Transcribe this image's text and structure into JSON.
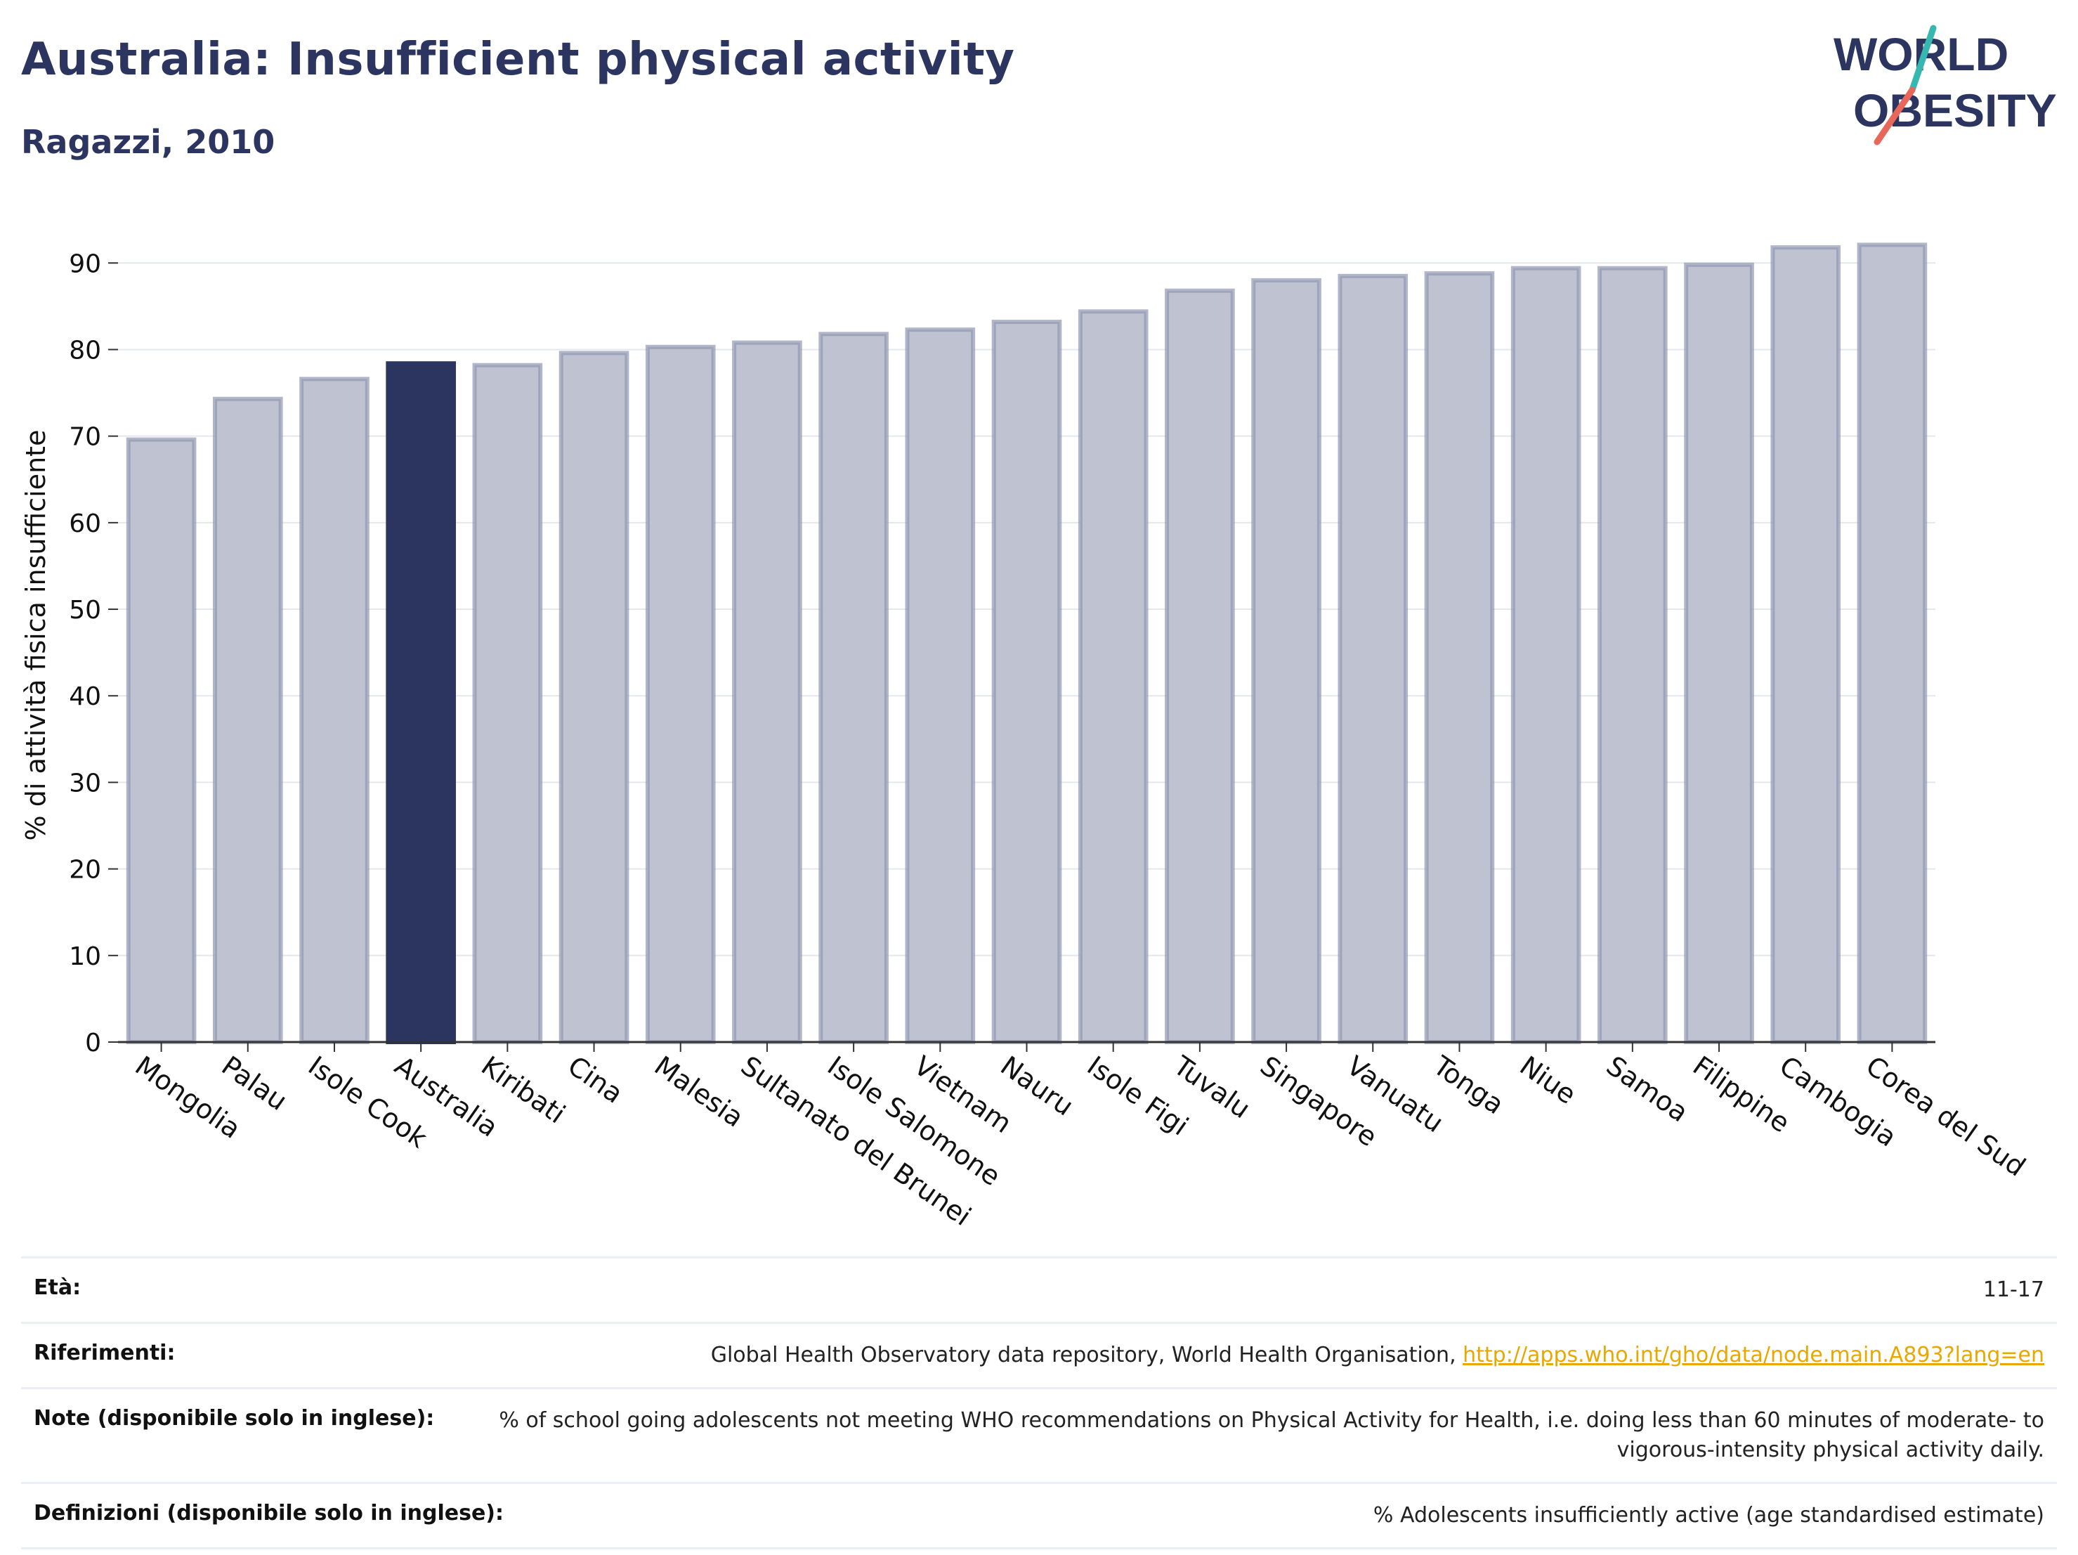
{
  "header": {
    "title": "Australia: Insufficient physical activity",
    "subtitle": "Ragazzi, 2010"
  },
  "logo": {
    "line1": "WORLD",
    "line2": "OBESITY",
    "accent_colors": [
      "#36b8b0",
      "#e8675a"
    ]
  },
  "colors": {
    "highlight": "#2b3560",
    "bar_fill": "#bfc2d0",
    "bar_stroke": "#9097b1",
    "grid": "#e6e7ec"
  },
  "chart_data": {
    "type": "bar",
    "ylabel": "% di attività fisica insufficiente",
    "xlabel": "",
    "ylim": [
      0,
      94
    ],
    "yticks": [
      0,
      10,
      20,
      30,
      40,
      50,
      60,
      70,
      80,
      90
    ],
    "highlight": "Australia",
    "categories": [
      "Mongolia",
      "Palau",
      "Isole Cook",
      "Australia",
      "Kiribati",
      "Cina",
      "Malesia",
      "Sultanato del Brunei",
      "Isole Salomone",
      "Vietnam",
      "Nauru",
      "Isole Figi",
      "Tuvalu",
      "Singapore",
      "Vanuatu",
      "Tonga",
      "Niue",
      "Samoa",
      "Filippine",
      "Cambogia",
      "Corea del Sud"
    ],
    "values": [
      69.6,
      74.3,
      76.6,
      78.4,
      78.2,
      79.6,
      80.3,
      80.8,
      81.8,
      82.3,
      83.2,
      84.4,
      86.8,
      88.0,
      88.5,
      88.8,
      89.4,
      89.4,
      89.8,
      91.8,
      92.1
    ],
    "grid": true
  },
  "footer": {
    "rows": [
      {
        "label": "Età:",
        "value": "11-17"
      },
      {
        "label": "Riferimenti:",
        "value": "Global Health Observatory data repository, World Health Organisation, ",
        "link": "http://apps.who.int/gho/data/node.main.A893?lang=en"
      },
      {
        "label": "Note (disponibile solo in inglese):",
        "value": "% of school going adolescents not meeting WHO recommendations on Physical Activity for Health, i.e. doing less than 60 minutes of moderate- to vigorous-intensity physical activity daily."
      },
      {
        "label": "Definizioni (disponibile solo in inglese):",
        "value": "% Adolescents insufficiently active (age standardised estimate)"
      }
    ]
  }
}
